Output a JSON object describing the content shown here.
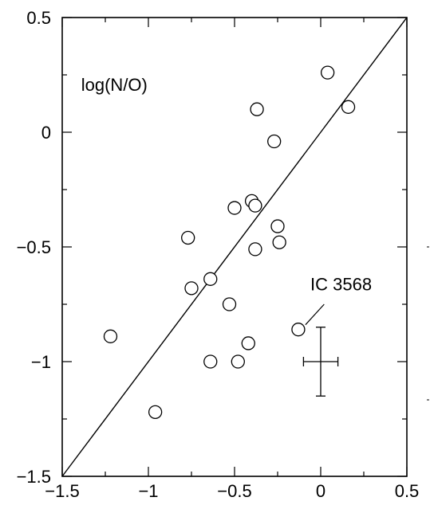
{
  "chart_data": {
    "type": "scatter",
    "title": "",
    "xlabel": "",
    "ylabel": "",
    "xlim": [
      -1.5,
      0.5
    ],
    "ylim": [
      -1.5,
      0.5
    ],
    "x_ticks": [
      -1.5,
      -1,
      -0.5,
      0,
      0.5
    ],
    "y_ticks": [
      -1.5,
      -1,
      -0.5,
      0,
      0.5
    ],
    "x_tick_labels": [
      "−1.5",
      "−1",
      "−0.5",
      "0",
      "0.5"
    ],
    "y_tick_labels": [
      "−1.5",
      "−1",
      "−0.5",
      "0",
      "0.5"
    ],
    "grid": false,
    "annotations": {
      "quantity_label": "log(N/O)",
      "object_label": "IC 3568"
    },
    "reference_line": {
      "from": [
        -1.5,
        -1.5
      ],
      "to": [
        0.5,
        0.5
      ]
    },
    "points": [
      {
        "x": 0.04,
        "y": 0.26
      },
      {
        "x": 0.16,
        "y": 0.11
      },
      {
        "x": -0.37,
        "y": 0.1
      },
      {
        "x": -0.27,
        "y": -0.04
      },
      {
        "x": -0.4,
        "y": -0.3
      },
      {
        "x": -0.38,
        "y": -0.32
      },
      {
        "x": -0.5,
        "y": -0.33
      },
      {
        "x": -0.25,
        "y": -0.41
      },
      {
        "x": -0.24,
        "y": -0.48
      },
      {
        "x": -0.77,
        "y": -0.46
      },
      {
        "x": -0.38,
        "y": -0.51
      },
      {
        "x": -0.64,
        "y": -0.64
      },
      {
        "x": -0.75,
        "y": -0.68
      },
      {
        "x": -0.53,
        "y": -0.75
      },
      {
        "x": -0.13,
        "y": -0.86
      },
      {
        "x": -1.22,
        "y": -0.89
      },
      {
        "x": -0.42,
        "y": -0.92
      },
      {
        "x": -0.64,
        "y": -1.0
      },
      {
        "x": -0.48,
        "y": -1.0
      },
      {
        "x": -0.96,
        "y": -1.22
      }
    ],
    "error_bar": {
      "x": 0.0,
      "y": -1.0,
      "x_err": 0.1,
      "y_err": 0.15
    }
  }
}
